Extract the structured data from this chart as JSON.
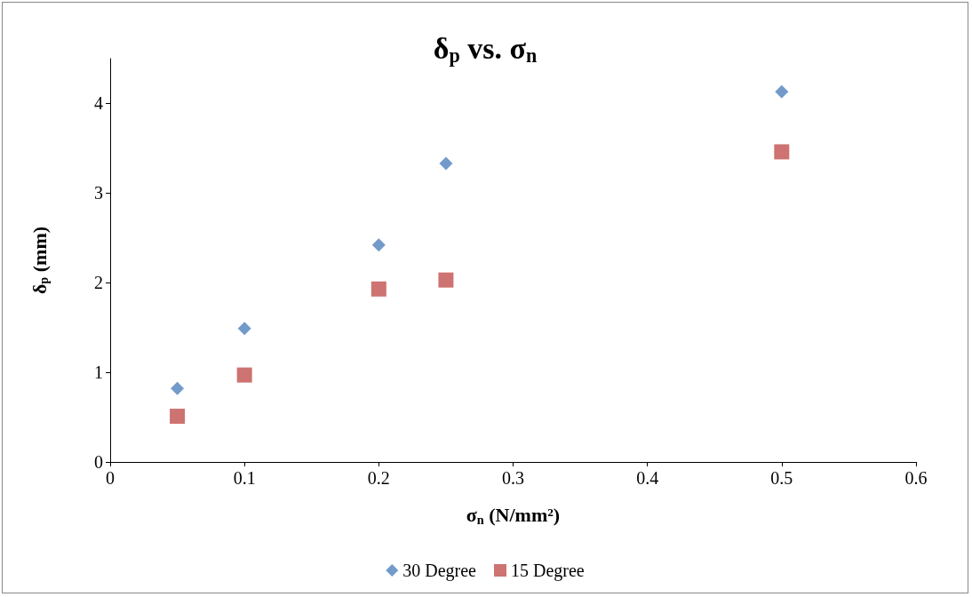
{
  "chart_data": {
    "type": "scatter",
    "title": "δ$_{p}$ vs. σ$_{n}$",
    "xlabel": "σ$_{n}$ (N/mm²)",
    "ylabel": "δ$_{p}$ (mm)",
    "x": [
      0.05,
      0.1,
      0.2,
      0.25,
      0.5
    ],
    "series": [
      {
        "name": "30 Degree",
        "color": "#4f81bd",
        "marker": "diamond",
        "values": [
          0.82,
          1.49,
          2.42,
          3.33,
          4.13
        ]
      },
      {
        "name": "15 Degree",
        "color": "#c0504d",
        "marker": "square",
        "values": [
          0.51,
          0.97,
          1.93,
          2.03,
          3.46
        ]
      }
    ],
    "xlim": [
      0,
      0.6
    ],
    "xticks": [
      0,
      0.1,
      0.2,
      0.3,
      0.4,
      0.5,
      0.6
    ],
    "ylim": [
      0,
      4.5
    ],
    "yticks": [
      0,
      1,
      2,
      3,
      4
    ],
    "grid": false,
    "legend": "bottom"
  }
}
